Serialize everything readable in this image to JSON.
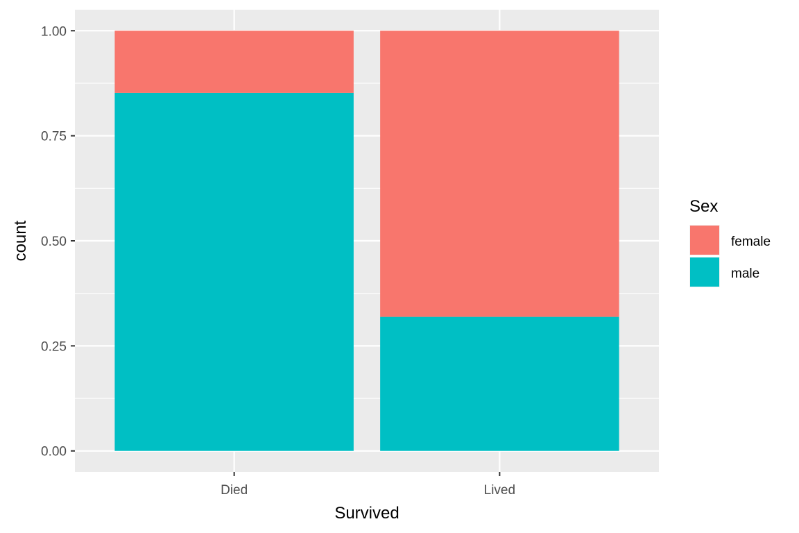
{
  "chart_data": {
    "type": "bar",
    "stacked": true,
    "position": "fill",
    "categories": [
      "Died",
      "Lived"
    ],
    "series": [
      {
        "name": "female",
        "values": [
          0.148,
          0.681
        ],
        "color": "#F8766D"
      },
      {
        "name": "male",
        "values": [
          0.852,
          0.319
        ],
        "color": "#00BFC4"
      }
    ],
    "title": "",
    "xlabel": "Survived",
    "ylabel": "count",
    "ylim": [
      -0.05,
      1.05
    ],
    "yticks": [
      0.0,
      0.25,
      0.5,
      0.75,
      1.0
    ],
    "ytick_labels": [
      "0.00",
      "0.25",
      "0.50",
      "0.75",
      "1.00"
    ],
    "grid": true,
    "panel_background": "#EBEBEB",
    "gridline_color": "#FFFFFF",
    "legend": {
      "title": "Sex",
      "placement": "right",
      "entries": [
        "female",
        "male"
      ]
    }
  }
}
